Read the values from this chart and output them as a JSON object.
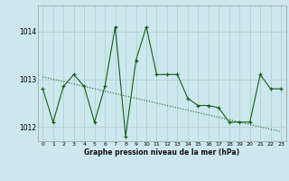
{
  "xlabel": "Graphe pression niveau de la mer (hPa)",
  "background_color": "#cce8ee",
  "grid_color": "#aacccc",
  "line_color": "#1a5c1a",
  "x_values": [
    0,
    1,
    2,
    3,
    4,
    5,
    6,
    7,
    8,
    9,
    10,
    11,
    12,
    13,
    14,
    15,
    16,
    17,
    18,
    19,
    20,
    21,
    22,
    23
  ],
  "y1_values": [
    1012.8,
    1012.1,
    1012.85,
    1013.1,
    1012.85,
    1012.1,
    1012.85,
    1014.1,
    1011.8,
    1013.4,
    1014.1,
    1013.1,
    1013.1,
    1013.1,
    1012.6,
    1012.45,
    1012.45,
    1012.4,
    1012.1,
    1012.1,
    1012.1,
    1013.1,
    1012.8,
    1012.8
  ],
  "y2_values": [
    1013.05,
    1013.0,
    1012.95,
    1012.9,
    1012.85,
    1012.8,
    1012.75,
    1012.7,
    1012.65,
    1012.6,
    1012.55,
    1012.5,
    1012.45,
    1012.4,
    1012.35,
    1012.3,
    1012.25,
    1012.2,
    1012.15,
    1012.1,
    1012.05,
    1012.0,
    1011.95,
    1011.9
  ],
  "ylim": [
    1011.7,
    1014.55
  ],
  "yticks": [
    1012,
    1013,
    1014
  ],
  "xticks": [
    0,
    1,
    2,
    3,
    4,
    5,
    6,
    7,
    8,
    9,
    10,
    11,
    12,
    13,
    14,
    15,
    16,
    17,
    18,
    19,
    20,
    21,
    22,
    23
  ],
  "figwidth": 3.2,
  "figheight": 2.0,
  "dpi": 100
}
